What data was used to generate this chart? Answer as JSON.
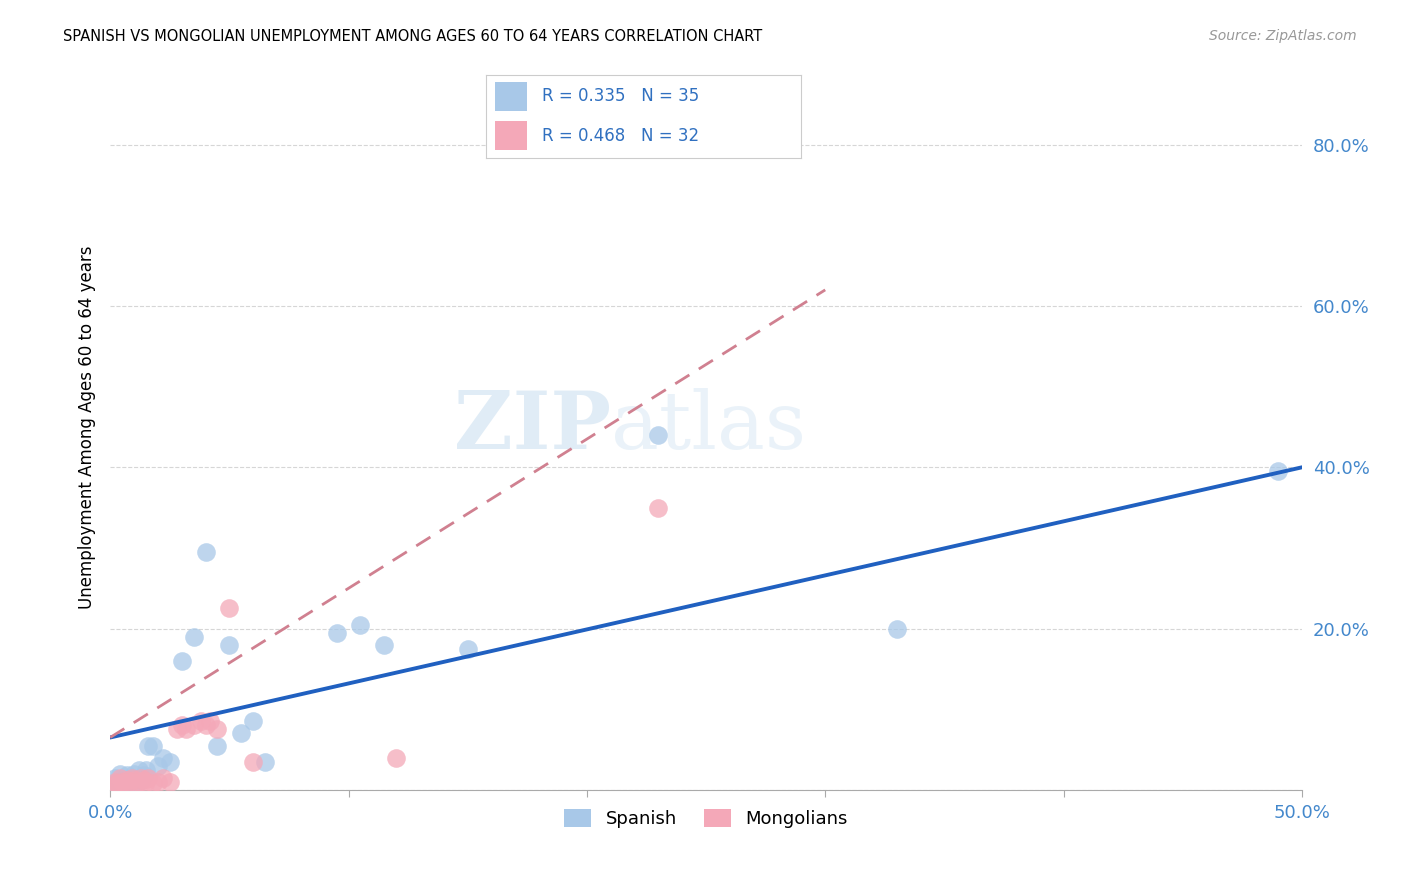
{
  "title": "SPANISH VS MONGOLIAN UNEMPLOYMENT AMONG AGES 60 TO 64 YEARS CORRELATION CHART",
  "source": "Source: ZipAtlas.com",
  "ylabel": "Unemployment Among Ages 60 to 64 years",
  "xlim": [
    0.0,
    0.5
  ],
  "ylim": [
    0.0,
    0.9
  ],
  "xticks": [
    0.0,
    0.1,
    0.2,
    0.3,
    0.4,
    0.5
  ],
  "yticks": [
    0.0,
    0.2,
    0.4,
    0.6,
    0.8
  ],
  "ytick_labels": [
    "",
    "20.0%",
    "40.0%",
    "60.0%",
    "80.0%"
  ],
  "xtick_labels": [
    "0.0%",
    "",
    "",
    "",
    "",
    "50.0%"
  ],
  "spanish_color": "#a8c8e8",
  "mongolian_color": "#f4a8b8",
  "spanish_line_color": "#2060c0",
  "mongolian_dash_color": "#d08090",
  "watermark_zip": "ZIP",
  "watermark_atlas": "atlas",
  "spanish_x": [
    0.001,
    0.002,
    0.003,
    0.004,
    0.005,
    0.006,
    0.007,
    0.008,
    0.009,
    0.01,
    0.011,
    0.012,
    0.013,
    0.014,
    0.015,
    0.016,
    0.018,
    0.02,
    0.022,
    0.025,
    0.03,
    0.035,
    0.04,
    0.045,
    0.05,
    0.055,
    0.06,
    0.065,
    0.095,
    0.105,
    0.115,
    0.15,
    0.23,
    0.33,
    0.49
  ],
  "spanish_y": [
    0.005,
    0.015,
    0.01,
    0.02,
    0.008,
    0.012,
    0.018,
    0.01,
    0.015,
    0.02,
    0.008,
    0.025,
    0.012,
    0.018,
    0.025,
    0.055,
    0.055,
    0.03,
    0.04,
    0.035,
    0.16,
    0.19,
    0.295,
    0.055,
    0.18,
    0.07,
    0.085,
    0.035,
    0.195,
    0.205,
    0.18,
    0.175,
    0.44,
    0.2,
    0.395
  ],
  "mongolian_x": [
    0.001,
    0.002,
    0.003,
    0.004,
    0.005,
    0.006,
    0.007,
    0.008,
    0.009,
    0.01,
    0.011,
    0.012,
    0.013,
    0.014,
    0.015,
    0.016,
    0.018,
    0.02,
    0.022,
    0.025,
    0.028,
    0.03,
    0.032,
    0.035,
    0.038,
    0.04,
    0.042,
    0.045,
    0.05,
    0.06,
    0.12,
    0.23
  ],
  "mongolian_y": [
    0.005,
    0.01,
    0.008,
    0.015,
    0.01,
    0.008,
    0.012,
    0.01,
    0.015,
    0.012,
    0.008,
    0.01,
    0.015,
    0.012,
    0.01,
    0.015,
    0.008,
    0.01,
    0.015,
    0.01,
    0.075,
    0.08,
    0.075,
    0.08,
    0.085,
    0.08,
    0.085,
    0.075,
    0.225,
    0.035,
    0.04,
    0.35
  ],
  "spanish_line_x": [
    0.0,
    0.5
  ],
  "spanish_line_y": [
    0.065,
    0.4
  ],
  "mongolian_line_x": [
    0.0,
    0.3
  ],
  "mongolian_line_y": [
    0.065,
    0.62
  ]
}
